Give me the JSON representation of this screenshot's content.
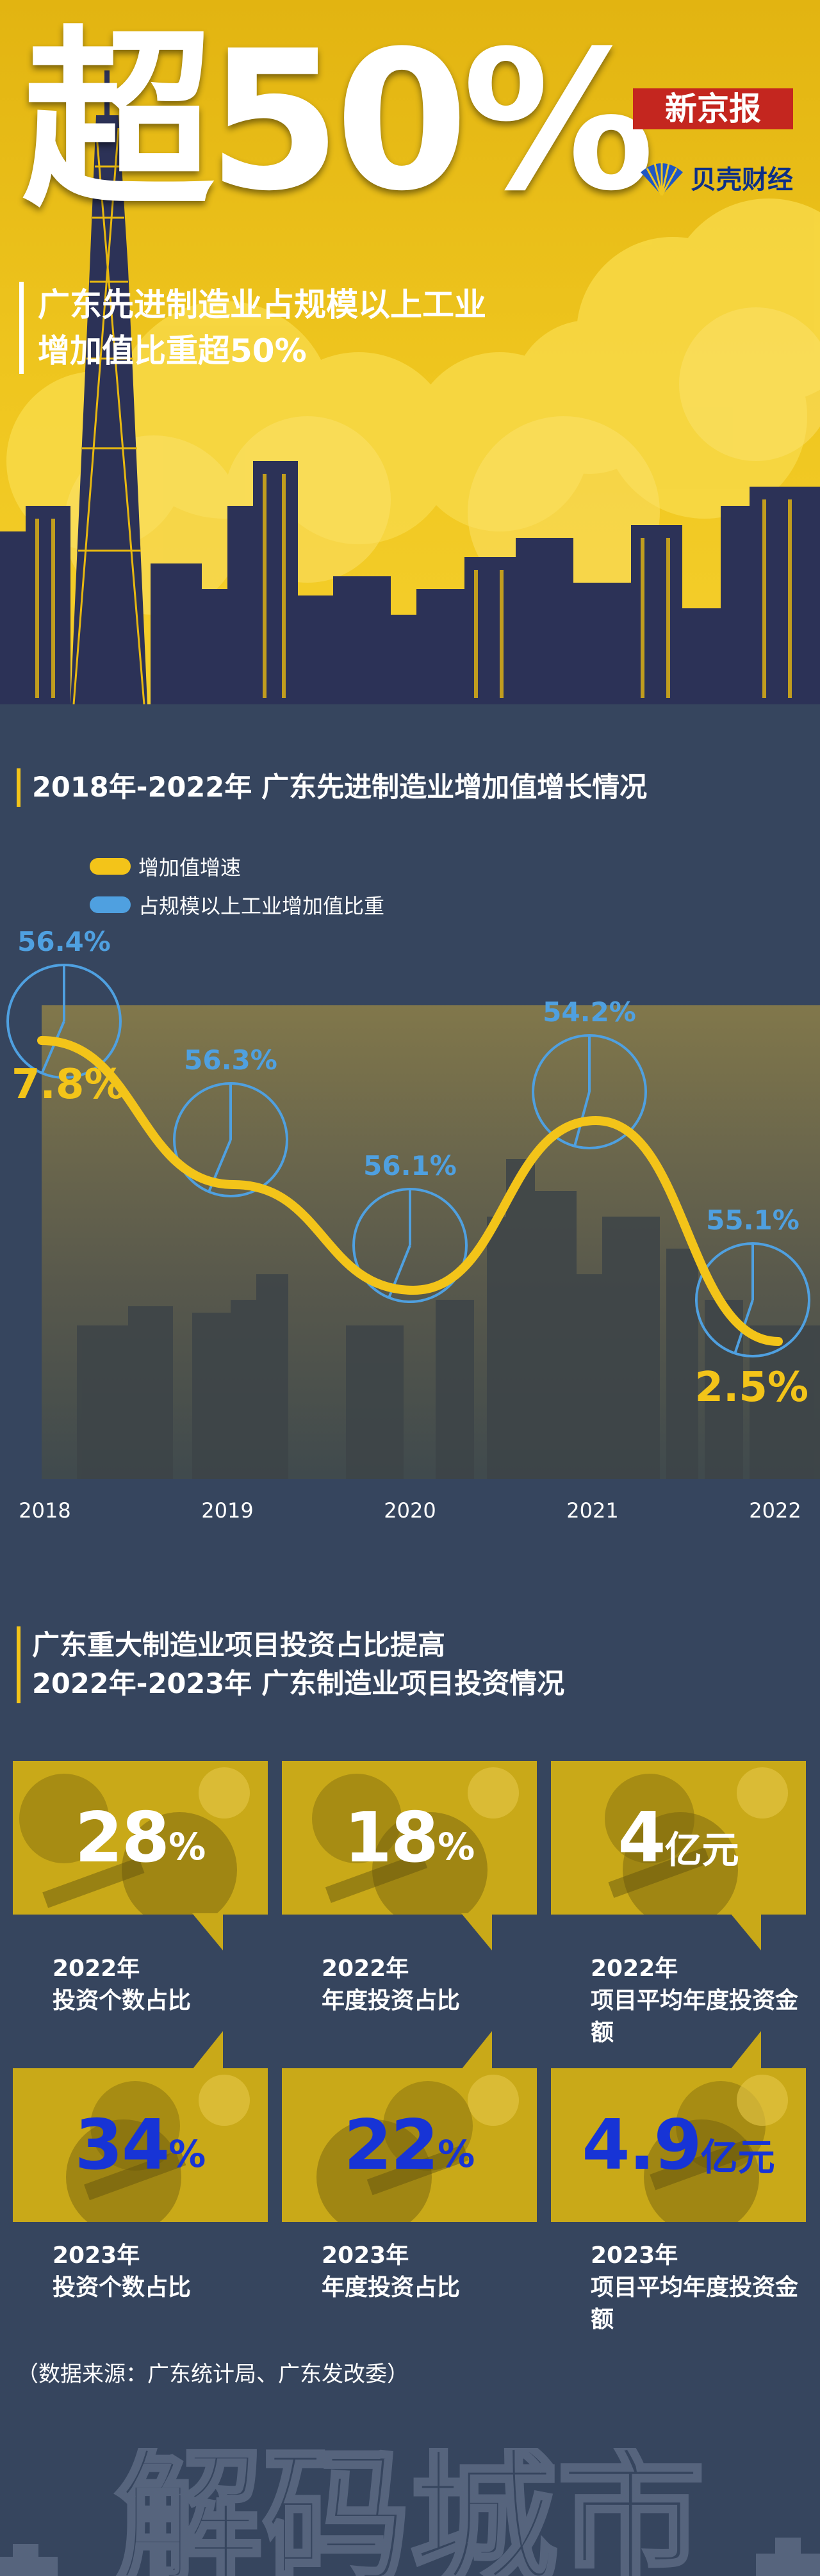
{
  "hero": {
    "title": "超50%",
    "subtitle_lines": [
      "广东先进制造业占规模以上工业",
      "增加值比重超50%"
    ],
    "logo_xjb": "新京报",
    "logo_bk": "贝壳财经",
    "colors": {
      "bg": "#efc61f",
      "city": "#2c3257"
    }
  },
  "chart_section": {
    "title": "2018年-2022年 广东先进制造业增加值增长情况",
    "legend": [
      {
        "label": "增加值增速",
        "color": "#f3c419"
      },
      {
        "label": "占规模以上工业增加值比重",
        "color": "#4fa0e0"
      }
    ]
  },
  "chart_data": {
    "type": "line",
    "title": "2018年-2022年 广东先进制造业增加值增长情况",
    "categories": [
      "2018",
      "2019",
      "2020",
      "2021",
      "2022"
    ],
    "series": [
      {
        "name": "增加值增速",
        "unit": "%",
        "values": [
          7.8,
          null,
          null,
          null,
          2.5
        ],
        "labels": [
          "7.8%",
          "",
          "",
          "",
          "2.5%"
        ],
        "color": "#f3c419"
      },
      {
        "name": "占规模以上工业增加值比重",
        "unit": "%",
        "values": [
          56.4,
          56.3,
          56.1,
          54.2,
          55.1
        ],
        "labels": [
          "56.4%",
          "56.3%",
          "56.1%",
          "54.2%",
          "55.1%"
        ],
        "color": "#4fa0e0"
      }
    ],
    "legend": "top-left"
  },
  "invest_section": {
    "title_lines": [
      "广东重大制造业项目投资占比提高",
      "2022年-2023年 广东制造业项目投资情况"
    ],
    "cards": [
      {
        "num": "28",
        "unit": "%",
        "year": "2022年",
        "label": "投资个数占比",
        "color": "#ffffff"
      },
      {
        "num": "18",
        "unit": "%",
        "year": "2022年",
        "label": "年度投资占比",
        "color": "#ffffff"
      },
      {
        "num": "4",
        "unit": "亿元",
        "year": "2022年",
        "label": "项目平均年度投资金额",
        "color": "#ffffff"
      },
      {
        "num": "34",
        "unit": "%",
        "year": "2023年",
        "label": "投资个数占比",
        "color": "#1734d6"
      },
      {
        "num": "22",
        "unit": "%",
        "year": "2023年",
        "label": "年度投资占比",
        "color": "#1734d6"
      },
      {
        "num": "4.9",
        "unit": "亿元",
        "year": "2023年",
        "label": "项目平均年度投资金额",
        "color": "#1734d6"
      }
    ]
  },
  "source": "（数据来源：广东统计局、广东发改委）",
  "footer": {
    "text": "解码城市"
  }
}
